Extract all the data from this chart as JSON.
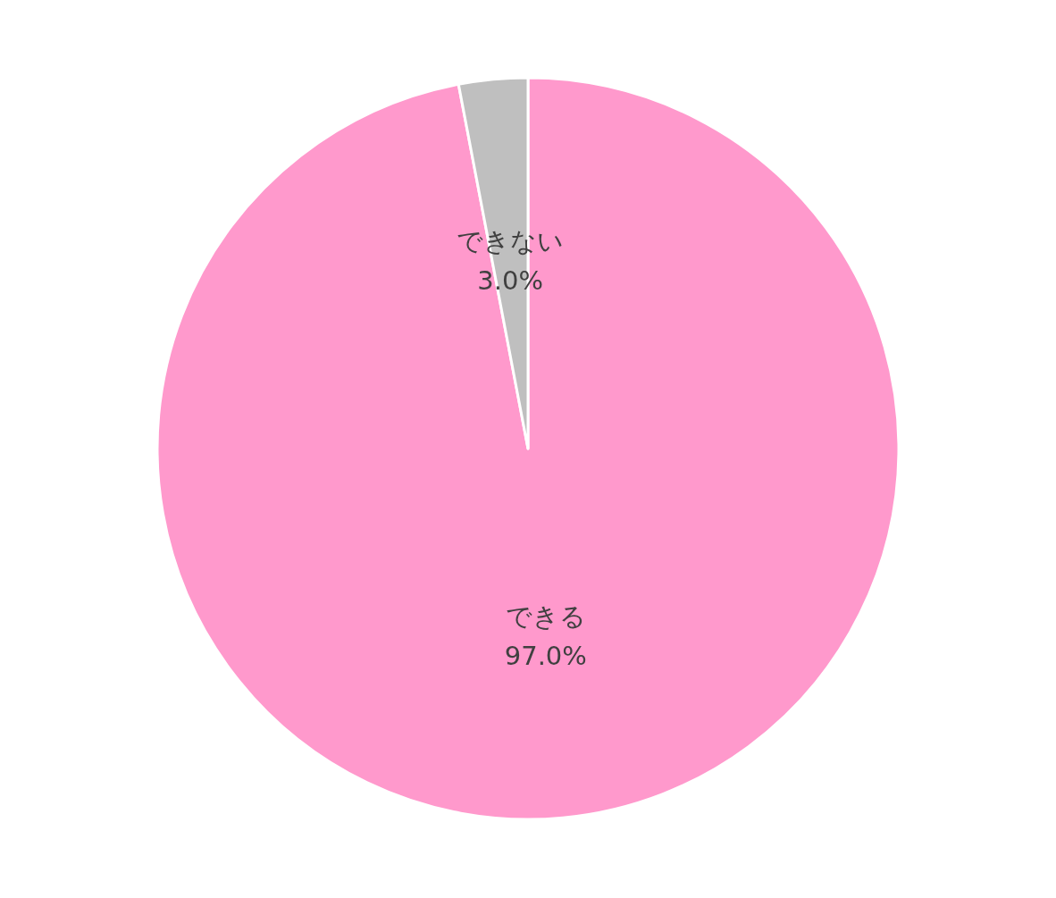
{
  "chart_data": {
    "type": "pie",
    "categories": [
      "できる",
      "できない"
    ],
    "values": [
      97.0,
      3.0
    ],
    "colors": [
      "#ff99cc",
      "#bfbfbf"
    ],
    "value_labels": [
      "97.0%",
      "3.0%"
    ],
    "legend": false
  }
}
